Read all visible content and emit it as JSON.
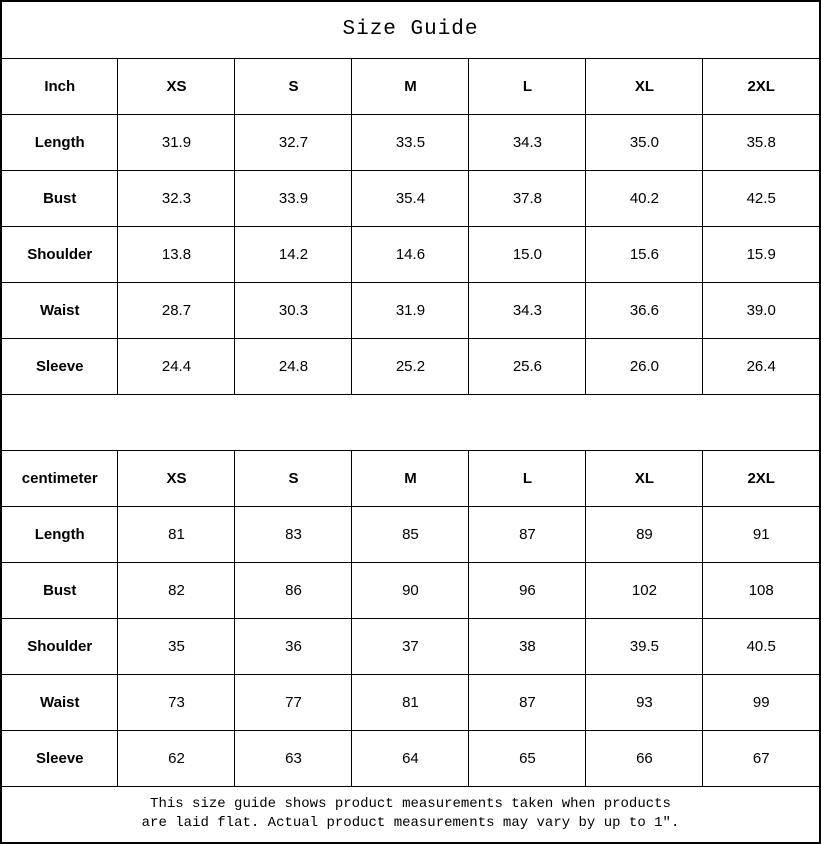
{
  "title": "Size Guide",
  "colors": {
    "background": "#ffffff",
    "border": "#000000",
    "text": "#000000"
  },
  "inch_table": {
    "unit_label": "Inch",
    "sizes": [
      "XS",
      "S",
      "M",
      "L",
      "XL",
      "2XL"
    ],
    "rows": [
      {
        "label": "Length",
        "values": [
          "31.9",
          "32.7",
          "33.5",
          "34.3",
          "35.0",
          "35.8"
        ]
      },
      {
        "label": "Bust",
        "values": [
          "32.3",
          "33.9",
          "35.4",
          "37.8",
          "40.2",
          "42.5"
        ]
      },
      {
        "label": "Shoulder",
        "values": [
          "13.8",
          "14.2",
          "14.6",
          "15.0",
          "15.6",
          "15.9"
        ]
      },
      {
        "label": "Waist",
        "values": [
          "28.7",
          "30.3",
          "31.9",
          "34.3",
          "36.6",
          "39.0"
        ]
      },
      {
        "label": "Sleeve",
        "values": [
          "24.4",
          "24.8",
          "25.2",
          "25.6",
          "26.0",
          "26.4"
        ]
      }
    ]
  },
  "cm_table": {
    "unit_label": "centimeter",
    "sizes": [
      "XS",
      "S",
      "M",
      "L",
      "XL",
      "2XL"
    ],
    "rows": [
      {
        "label": "Length",
        "values": [
          "81",
          "83",
          "85",
          "87",
          "89",
          "91"
        ]
      },
      {
        "label": "Bust",
        "values": [
          "82",
          "86",
          "90",
          "96",
          "102",
          "108"
        ]
      },
      {
        "label": "Shoulder",
        "values": [
          "35",
          "36",
          "37",
          "38",
          "39.5",
          "40.5"
        ]
      },
      {
        "label": "Waist",
        "values": [
          "73",
          "77",
          "81",
          "87",
          "93",
          "99"
        ]
      },
      {
        "label": "Sleeve",
        "values": [
          "62",
          "63",
          "64",
          "65",
          "66",
          "67"
        ]
      }
    ]
  },
  "footer": {
    "line1": "This size guide shows product measurements taken when products",
    "line2": "are laid flat. Actual product measurements may vary by up to 1″."
  }
}
